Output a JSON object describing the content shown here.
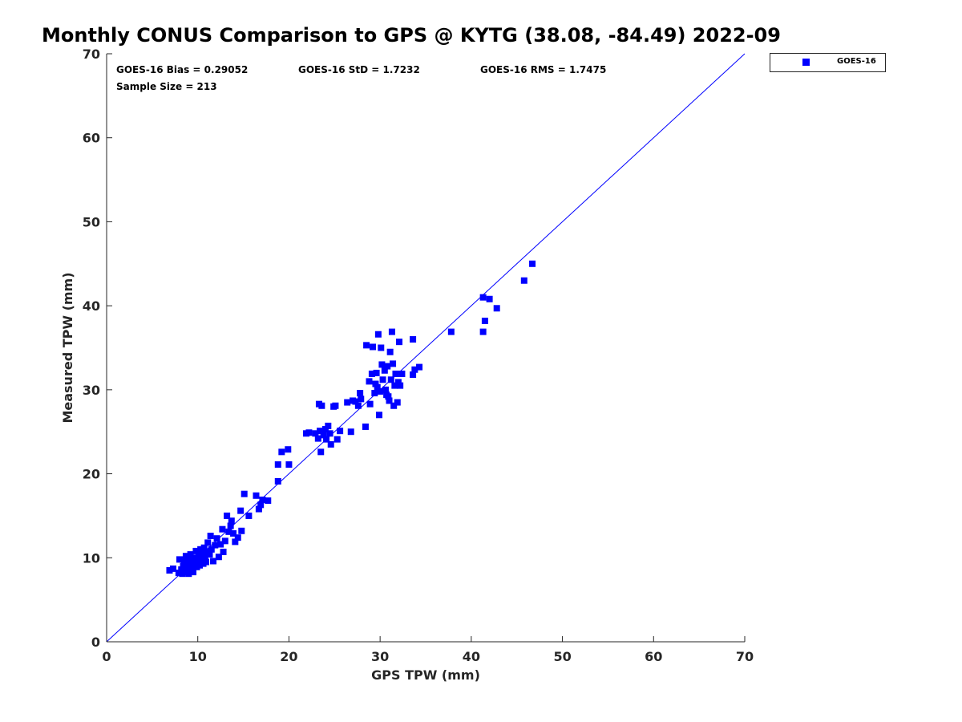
{
  "chart_data": {
    "type": "scatter",
    "title": "Monthly CONUS Comparison to GPS @ KYTG (38.08, -84.49) 2022-09",
    "xlabel": "GPS TPW (mm)",
    "ylabel": "Measured TPW (mm)",
    "xlim": [
      0,
      70
    ],
    "ylim": [
      0,
      70
    ],
    "xticks": [
      0,
      10,
      20,
      30,
      40,
      50,
      60,
      70
    ],
    "yticks": [
      0,
      10,
      20,
      30,
      40,
      50,
      60,
      70
    ],
    "x_tick_labels": [
      "0",
      "10",
      "20",
      "30",
      "40",
      "50",
      "60",
      "70"
    ],
    "y_tick_labels": [
      "0",
      "10",
      "20",
      "30",
      "40",
      "50",
      "60",
      "70"
    ],
    "grid": false,
    "legend_position": "outside-top-right",
    "reference_line": {
      "from": [
        0,
        0
      ],
      "to": [
        70,
        70
      ],
      "color": "#0000ff"
    },
    "stats": {
      "bias": "GOES-16 Bias = 0.29052",
      "std": "GOES-16 StD = 1.7232",
      "rms": "GOES-16 RMS = 1.7475",
      "sample_size": "Sample Size = 213"
    },
    "series": [
      {
        "name": "GOES-16",
        "color": "#0000ff",
        "marker": "square",
        "points": [
          [
            6.9,
            8.5
          ],
          [
            7.3,
            8.7
          ],
          [
            7.9,
            8.2
          ],
          [
            8.0,
            9.8
          ],
          [
            8.2,
            8.6
          ],
          [
            8.3,
            8.1
          ],
          [
            8.4,
            9.0
          ],
          [
            8.5,
            9.5
          ],
          [
            8.6,
            8.3
          ],
          [
            8.7,
            10.2
          ],
          [
            8.8,
            8.8
          ],
          [
            8.9,
            9.3
          ],
          [
            9.0,
            8.1
          ],
          [
            9.1,
            9.7
          ],
          [
            9.2,
            10.4
          ],
          [
            9.3,
            8.6
          ],
          [
            9.4,
            9.1
          ],
          [
            9.5,
            8.3
          ],
          [
            9.6,
            10.0
          ],
          [
            9.7,
            9.4
          ],
          [
            9.8,
            10.8
          ],
          [
            9.9,
            8.9
          ],
          [
            10.0,
            9.6
          ],
          [
            10.1,
            10.3
          ],
          [
            10.2,
            9.1
          ],
          [
            10.3,
            11.0
          ],
          [
            10.4,
            9.8
          ],
          [
            10.5,
            10.5
          ],
          [
            10.6,
            9.3
          ],
          [
            10.7,
            11.2
          ],
          [
            10.8,
            10.0
          ],
          [
            10.9,
            9.5
          ],
          [
            11.0,
            10.7
          ],
          [
            11.1,
            11.8
          ],
          [
            11.3,
            10.4
          ],
          [
            11.4,
            12.6
          ],
          [
            11.5,
            11.0
          ],
          [
            11.7,
            9.6
          ],
          [
            11.9,
            11.5
          ],
          [
            12.1,
            12.3
          ],
          [
            12.3,
            10.1
          ],
          [
            12.5,
            11.6
          ],
          [
            12.7,
            13.4
          ],
          [
            12.8,
            10.7
          ],
          [
            13.0,
            12.0
          ],
          [
            13.2,
            15.0
          ],
          [
            13.4,
            13.1
          ],
          [
            13.6,
            13.8
          ],
          [
            13.7,
            14.4
          ],
          [
            13.9,
            12.9
          ],
          [
            14.1,
            11.9
          ],
          [
            14.4,
            12.4
          ],
          [
            14.7,
            15.6
          ],
          [
            14.8,
            13.2
          ],
          [
            15.1,
            17.6
          ],
          [
            15.6,
            15.0
          ],
          [
            16.4,
            17.4
          ],
          [
            16.7,
            15.8
          ],
          [
            16.9,
            16.3
          ],
          [
            17.1,
            16.9
          ],
          [
            17.7,
            16.8
          ],
          [
            18.8,
            19.1
          ],
          [
            18.8,
            21.1
          ],
          [
            19.2,
            22.6
          ],
          [
            19.9,
            22.9
          ],
          [
            20.0,
            21.1
          ],
          [
            21.9,
            24.8
          ],
          [
            22.2,
            24.9
          ],
          [
            22.9,
            24.8
          ],
          [
            23.2,
            24.2
          ],
          [
            23.3,
            28.3
          ],
          [
            23.4,
            25.1
          ],
          [
            23.5,
            22.6
          ],
          [
            23.6,
            28.1
          ],
          [
            23.8,
            24.6
          ],
          [
            24.0,
            25.3
          ],
          [
            24.1,
            24.1
          ],
          [
            24.3,
            25.7
          ],
          [
            24.5,
            24.8
          ],
          [
            24.6,
            23.5
          ],
          [
            24.9,
            28.0
          ],
          [
            25.1,
            28.1
          ],
          [
            25.3,
            24.1
          ],
          [
            25.6,
            25.1
          ],
          [
            26.4,
            28.5
          ],
          [
            26.8,
            25.0
          ],
          [
            27.0,
            28.7
          ],
          [
            27.3,
            28.6
          ],
          [
            27.6,
            28.1
          ],
          [
            27.8,
            29.6
          ],
          [
            27.9,
            28.9
          ],
          [
            28.4,
            25.6
          ],
          [
            28.5,
            35.3
          ],
          [
            28.8,
            31.0
          ],
          [
            28.9,
            28.3
          ],
          [
            29.1,
            31.9
          ],
          [
            29.2,
            35.1
          ],
          [
            29.4,
            29.6
          ],
          [
            29.5,
            30.7
          ],
          [
            29.6,
            32.0
          ],
          [
            29.7,
            30.3
          ],
          [
            29.8,
            36.6
          ],
          [
            29.9,
            27.0
          ],
          [
            30.0,
            29.8
          ],
          [
            30.1,
            35.0
          ],
          [
            30.2,
            33.0
          ],
          [
            30.3,
            31.2
          ],
          [
            30.5,
            32.3
          ],
          [
            30.6,
            30.0
          ],
          [
            30.7,
            29.4
          ],
          [
            30.8,
            32.8
          ],
          [
            30.9,
            29.2
          ],
          [
            31.0,
            28.7
          ],
          [
            31.1,
            34.5
          ],
          [
            31.2,
            31.2
          ],
          [
            31.3,
            36.9
          ],
          [
            31.4,
            33.1
          ],
          [
            31.5,
            28.1
          ],
          [
            31.6,
            30.5
          ],
          [
            31.7,
            31.9
          ],
          [
            31.9,
            28.5
          ],
          [
            32.0,
            30.9
          ],
          [
            32.1,
            35.7
          ],
          [
            32.2,
            30.5
          ],
          [
            32.4,
            31.9
          ],
          [
            33.6,
            31.8
          ],
          [
            33.6,
            36.0
          ],
          [
            33.8,
            32.4
          ],
          [
            34.3,
            32.7
          ],
          [
            37.8,
            36.9
          ],
          [
            41.3,
            41.0
          ],
          [
            41.3,
            36.9
          ],
          [
            41.5,
            38.2
          ],
          [
            42.0,
            40.8
          ],
          [
            42.8,
            39.7
          ],
          [
            45.8,
            43.0
          ],
          [
            46.7,
            45.0
          ]
        ]
      }
    ]
  }
}
